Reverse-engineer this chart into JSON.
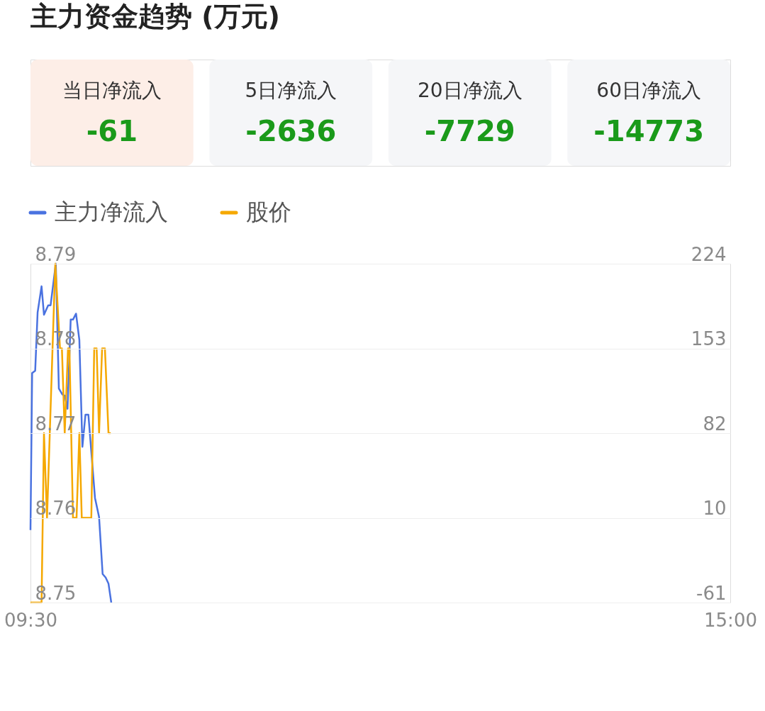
{
  "chart_data": [
    {
      "type": "other",
      "title": "主力资金趋势 (万元)",
      "categories": [
        "当日净流入",
        "5日净流入",
        "20日净流入",
        "60日净流入"
      ],
      "values": [
        -61,
        -2636,
        -7729,
        -14773
      ],
      "colors": [
        "#fdeee7",
        "#f5f6f8",
        "#f5f6f8",
        "#f5f6f8"
      ],
      "data_labels": true
    },
    {
      "type": "line",
      "xlim": [
        9.5,
        15
      ],
      "xticks": [
        {
          "value": 9.5,
          "label": "09:30"
        },
        {
          "value": 15,
          "label": "15:00"
        }
      ],
      "ylim": [
        8.75,
        8.79
      ],
      "yticks": [
        8.75,
        8.76,
        8.77,
        8.78,
        8.79
      ],
      "y2lim": [
        -61,
        224
      ],
      "y2ticks": [
        {
          "value": -61,
          "label": "-61"
        },
        {
          "value": 10.25,
          "label": "10"
        },
        {
          "value": 81.5,
          "label": "82"
        },
        {
          "value": 152.75,
          "label": "153"
        },
        {
          "value": 224,
          "label": "224"
        }
      ],
      "grid": "y",
      "legend": "top left",
      "series": [
        {
          "name": "主力净流入",
          "color": "#4a72e0",
          "axis": "y2",
          "x": [
            9.5,
            9.513,
            9.537,
            9.556,
            9.587,
            9.606,
            9.639,
            9.658,
            9.699,
            9.723,
            9.751,
            9.769,
            9.791,
            9.816,
            9.834,
            9.858,
            9.884,
            9.908,
            9.932,
            9.955,
            10.007,
            10.039,
            10.067,
            10.091,
            10.113,
            10.135
          ],
          "values": [
            0,
            132,
            134,
            183,
            205,
            181,
            189,
            189,
            224,
            119,
            114,
            113,
            102,
            177,
            177,
            182,
            160,
            70,
            97,
            97,
            27,
            11,
            -37,
            -40,
            -45,
            -61
          ]
        },
        {
          "name": "股价",
          "color": "#f5a800",
          "x": [
            9.5,
            9.587,
            9.606,
            9.63,
            9.695,
            9.732,
            9.747,
            9.769,
            9.795,
            9.806,
            9.834,
            9.862,
            9.884,
            9.903,
            9.978,
            10.001,
            10.02,
            10.039,
            10.063,
            10.085,
            10.113,
            10.131
          ],
          "values": [
            8.75,
            8.75,
            8.77,
            8.76,
            8.79,
            8.78,
            8.78,
            8.77,
            8.78,
            8.78,
            8.76,
            8.76,
            8.77,
            8.76,
            8.76,
            8.78,
            8.78,
            8.77,
            8.78,
            8.78,
            8.77,
            8.77
          ]
        }
      ]
    }
  ]
}
